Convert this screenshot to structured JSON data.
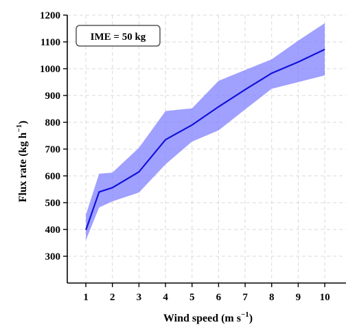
{
  "chart_data": {
    "type": "line",
    "annotation": "IME = 50 kg",
    "xlabel_main": "Wind speed (m s",
    "xlabel_sup": "−1",
    "xlabel_close": ")",
    "ylabel_main": "Flux rate (kg h",
    "ylabel_sup": "−1",
    "ylabel_close": ")",
    "xlim": [
      0.3,
      10.8
    ],
    "ylim": [
      200,
      1200
    ],
    "xticks": [
      1,
      2,
      3,
      4,
      5,
      6,
      7,
      8,
      9,
      10
    ],
    "yticks": [
      300,
      400,
      500,
      600,
      700,
      800,
      900,
      1000,
      1100,
      1200
    ],
    "grid": true,
    "series": [
      {
        "x": [
          1,
          1.5,
          2,
          3,
          4,
          5,
          6,
          7,
          8,
          9,
          10
        ],
        "mean": [
          398,
          540,
          556,
          615,
          735,
          790,
          858,
          922,
          983,
          1025,
          1072
        ],
        "upper": [
          455,
          608,
          612,
          705,
          842,
          852,
          955,
          995,
          1035,
          1105,
          1170
        ],
        "lower": [
          360,
          482,
          505,
          538,
          643,
          728,
          770,
          848,
          925,
          950,
          975
        ]
      }
    ],
    "colors": {
      "line": "#1111dd",
      "band": "#8080ff",
      "axis": "#000000",
      "grid": "#d8d8d8"
    }
  }
}
